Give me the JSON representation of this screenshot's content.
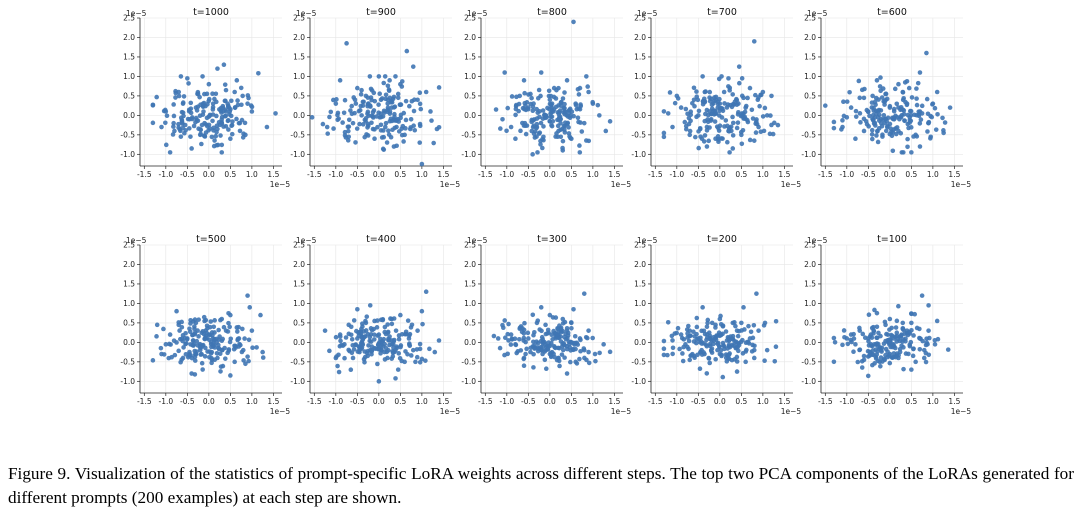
{
  "chart_data": {
    "type": "scatter",
    "description_axes": {
      "x_ticks": [
        "-1.5",
        "-1.0",
        "-0.5",
        "0.0",
        "0.5",
        "1.0",
        "1.5"
      ],
      "y_ticks": [
        "2.5",
        "2.0",
        "1.5",
        "1.0",
        "0.5",
        "0.0",
        "-0.5",
        "-1.0"
      ],
      "x_scale_label": "1e−5",
      "y_scale_label": "1e−5",
      "xlim": [
        -1.6,
        1.7
      ],
      "ylim": [
        -1.3,
        2.5
      ],
      "grid": true
    },
    "panels": [
      {
        "title": "t=1000",
        "points": [
          [
            -0.5,
            0.95
          ],
          [
            0.2,
            1.2
          ],
          [
            1.15,
            1.08
          ],
          [
            0.35,
            1.3
          ],
          [
            -0.9,
            -0.95
          ],
          [
            -0.4,
            -0.85
          ],
          [
            0.3,
            -0.95
          ],
          [
            1.55,
            0.05
          ],
          [
            1.35,
            -0.3
          ],
          [
            -1.0,
            0.1
          ],
          [
            -0.7,
            0.6
          ],
          [
            0.0,
            0.8
          ],
          [
            0.6,
            0.6
          ],
          [
            0.9,
            0.3
          ],
          [
            -0.2,
            -0.5
          ],
          [
            0.5,
            -0.6
          ],
          [
            -0.8,
            -0.4
          ],
          [
            0.1,
            0.3
          ],
          [
            -0.3,
            0.2
          ],
          [
            0.7,
            -0.2
          ],
          [
            1.0,
            0.1
          ],
          [
            -0.6,
            0.3
          ],
          [
            0.4,
            0.1
          ],
          [
            -0.1,
            -0.2
          ],
          [
            0.2,
            -0.35
          ],
          [
            -0.45,
            -0.1
          ],
          [
            0.85,
            -0.5
          ],
          [
            -1.1,
            -0.3
          ],
          [
            0.65,
            0.9
          ],
          [
            -0.25,
            0.55
          ]
        ]
      },
      {
        "title": "t=900",
        "points": [
          [
            -0.75,
            1.85
          ],
          [
            0.65,
            1.65
          ],
          [
            0.8,
            1.25
          ],
          [
            1.0,
            -1.25
          ],
          [
            -1.55,
            -0.05
          ],
          [
            1.35,
            -0.35
          ],
          [
            -0.9,
            0.9
          ],
          [
            0.0,
            1.0
          ],
          [
            0.5,
            0.8
          ],
          [
            -0.3,
            0.5
          ],
          [
            0.3,
            0.2
          ],
          [
            -0.6,
            -0.2
          ],
          [
            0.9,
            0.4
          ],
          [
            -0.1,
            -0.6
          ],
          [
            0.6,
            -0.5
          ],
          [
            1.2,
            0.1
          ],
          [
            -1.0,
            0.3
          ],
          [
            -0.4,
            0.0
          ],
          [
            0.15,
            -0.3
          ],
          [
            0.45,
            0.55
          ],
          [
            -0.7,
            -0.55
          ],
          [
            1.1,
            0.6
          ],
          [
            0.25,
            0.9
          ],
          [
            -0.2,
            0.25
          ],
          [
            0.75,
            -0.1
          ],
          [
            -1.2,
            -0.3
          ],
          [
            0.05,
            0.4
          ],
          [
            -0.5,
            0.7
          ],
          [
            0.35,
            -0.8
          ],
          [
            0.95,
            -0.7
          ]
        ]
      },
      {
        "title": "t=800",
        "points": [
          [
            0.55,
            2.4
          ],
          [
            -1.05,
            1.1
          ],
          [
            -0.6,
            0.9
          ],
          [
            -0.2,
            1.1
          ],
          [
            0.4,
            0.9
          ],
          [
            1.3,
            -0.4
          ],
          [
            -1.25,
            0.15
          ],
          [
            -0.4,
            -1.0
          ],
          [
            0.3,
            -0.9
          ],
          [
            0.0,
            0.4
          ],
          [
            0.6,
            0.3
          ],
          [
            -0.5,
            0.2
          ],
          [
            0.8,
            -0.2
          ],
          [
            -0.9,
            -0.3
          ],
          [
            0.2,
            -0.4
          ],
          [
            -0.1,
            0.0
          ],
          [
            1.0,
            0.3
          ],
          [
            0.5,
            -0.6
          ],
          [
            -0.7,
            0.5
          ],
          [
            0.9,
            0.6
          ],
          [
            -0.3,
            -0.3
          ],
          [
            0.7,
            0.7
          ],
          [
            -0.8,
            -0.6
          ],
          [
            0.1,
            0.7
          ],
          [
            1.15,
            0.0
          ],
          [
            -1.1,
            -0.1
          ],
          [
            0.35,
            0.1
          ],
          [
            -0.45,
            0.55
          ],
          [
            0.25,
            -0.2
          ],
          [
            -0.15,
            -0.55
          ]
        ]
      },
      {
        "title": "t=700",
        "points": [
          [
            0.8,
            1.9
          ],
          [
            0.45,
            1.25
          ],
          [
            -0.4,
            1.0
          ],
          [
            0.2,
            0.95
          ],
          [
            1.2,
            0.5
          ],
          [
            1.35,
            -0.25
          ],
          [
            -1.1,
            -0.3
          ],
          [
            -1.2,
            0.05
          ],
          [
            0.3,
            -0.85
          ],
          [
            -0.3,
            -0.8
          ],
          [
            0.0,
            0.3
          ],
          [
            0.6,
            0.2
          ],
          [
            -0.6,
            0.4
          ],
          [
            0.9,
            -0.3
          ],
          [
            -0.9,
            0.2
          ],
          [
            0.2,
            -0.4
          ],
          [
            -0.2,
            -0.1
          ],
          [
            1.0,
            0.6
          ],
          [
            0.5,
            -0.5
          ],
          [
            -0.7,
            -0.5
          ],
          [
            0.7,
            0.7
          ],
          [
            -0.5,
            0.0
          ],
          [
            0.1,
            0.6
          ],
          [
            1.1,
            0.0
          ],
          [
            -1.0,
            0.5
          ],
          [
            0.35,
            0.35
          ],
          [
            -0.35,
            0.6
          ],
          [
            0.8,
            -0.65
          ],
          [
            -0.1,
            -0.6
          ],
          [
            0.55,
            0.45
          ]
        ]
      },
      {
        "title": "t=600",
        "points": [
          [
            0.85,
            1.6
          ],
          [
            0.7,
            1.1
          ],
          [
            -0.3,
            0.9
          ],
          [
            0.2,
            0.8
          ],
          [
            1.1,
            0.6
          ],
          [
            1.25,
            -0.45
          ],
          [
            -1.5,
            0.25
          ],
          [
            -1.1,
            -0.3
          ],
          [
            -0.8,
            -0.6
          ],
          [
            0.5,
            -0.95
          ],
          [
            0.7,
            -0.8
          ],
          [
            0.0,
            0.2
          ],
          [
            0.4,
            0.3
          ],
          [
            -0.5,
            0.1
          ],
          [
            0.9,
            -0.2
          ],
          [
            -0.9,
            0.2
          ],
          [
            0.2,
            -0.4
          ],
          [
            -0.2,
            -0.2
          ],
          [
            1.0,
            0.3
          ],
          [
            0.6,
            -0.5
          ],
          [
            -0.6,
            -0.4
          ],
          [
            0.3,
            0.6
          ],
          [
            -0.4,
            0.5
          ],
          [
            0.1,
            -0.1
          ],
          [
            0.75,
            0.05
          ],
          [
            -1.0,
            -0.05
          ],
          [
            0.45,
            0.7
          ],
          [
            -0.1,
            0.55
          ],
          [
            0.95,
            -0.55
          ],
          [
            -0.7,
            0.45
          ]
        ]
      },
      {
        "title": "t=500",
        "points": [
          [
            0.9,
            1.2
          ],
          [
            0.95,
            0.9
          ],
          [
            1.2,
            0.7
          ],
          [
            -1.2,
            0.45
          ],
          [
            -0.75,
            0.8
          ],
          [
            -1.1,
            -0.3
          ],
          [
            0.5,
            -0.85
          ],
          [
            -0.4,
            -0.8
          ],
          [
            1.25,
            -0.25
          ],
          [
            0.0,
            0.2
          ],
          [
            0.4,
            0.3
          ],
          [
            -0.5,
            0.1
          ],
          [
            0.8,
            -0.2
          ],
          [
            -0.9,
            0.2
          ],
          [
            0.2,
            -0.4
          ],
          [
            -0.2,
            -0.2
          ],
          [
            1.0,
            0.3
          ],
          [
            0.6,
            -0.5
          ],
          [
            -0.6,
            -0.4
          ],
          [
            0.3,
            0.6
          ],
          [
            -0.3,
            0.5
          ],
          [
            0.1,
            -0.1
          ],
          [
            0.7,
            0.1
          ],
          [
            -1.0,
            -0.05
          ],
          [
            0.5,
            0.7
          ],
          [
            -0.1,
            0.55
          ],
          [
            0.85,
            -0.55
          ],
          [
            -0.7,
            0.45
          ],
          [
            0.25,
            0.15
          ],
          [
            -0.45,
            -0.25
          ]
        ]
      },
      {
        "title": "t=400",
        "points": [
          [
            1.1,
            1.3
          ],
          [
            1.0,
            0.8
          ],
          [
            -0.2,
            0.95
          ],
          [
            -0.5,
            0.85
          ],
          [
            -1.25,
            0.3
          ],
          [
            0.0,
            -1.0
          ],
          [
            0.45,
            -0.7
          ],
          [
            1.3,
            -0.25
          ],
          [
            -1.0,
            -0.4
          ],
          [
            0.0,
            0.2
          ],
          [
            0.4,
            0.3
          ],
          [
            -0.5,
            0.1
          ],
          [
            0.8,
            -0.2
          ],
          [
            -0.9,
            0.2
          ],
          [
            0.2,
            -0.4
          ],
          [
            -0.2,
            -0.2
          ],
          [
            0.9,
            0.3
          ],
          [
            0.6,
            -0.5
          ],
          [
            -0.6,
            -0.4
          ],
          [
            0.3,
            0.6
          ],
          [
            -0.3,
            0.5
          ],
          [
            0.1,
            -0.1
          ],
          [
            0.7,
            0.1
          ],
          [
            -0.8,
            -0.05
          ],
          [
            0.5,
            0.7
          ],
          [
            -0.1,
            0.55
          ],
          [
            0.85,
            -0.5
          ],
          [
            -0.7,
            0.45
          ],
          [
            0.25,
            0.15
          ],
          [
            -0.45,
            -0.25
          ]
        ]
      },
      {
        "title": "t=300",
        "points": [
          [
            0.8,
            1.25
          ],
          [
            0.55,
            0.85
          ],
          [
            -0.2,
            0.9
          ],
          [
            0.0,
            0.7
          ],
          [
            -1.2,
            0.1
          ],
          [
            1.25,
            -0.05
          ],
          [
            -0.6,
            -0.6
          ],
          [
            0.4,
            -0.8
          ],
          [
            0.0,
            -0.3
          ],
          [
            0.4,
            0.3
          ],
          [
            -0.5,
            0.1
          ],
          [
            0.8,
            -0.2
          ],
          [
            -0.9,
            0.2
          ],
          [
            0.2,
            -0.4
          ],
          [
            -0.2,
            -0.2
          ],
          [
            0.9,
            0.3
          ],
          [
            0.6,
            -0.5
          ],
          [
            -0.6,
            -0.4
          ],
          [
            0.3,
            0.6
          ],
          [
            -0.3,
            0.5
          ],
          [
            0.1,
            -0.1
          ],
          [
            0.7,
            0.1
          ],
          [
            -0.8,
            -0.05
          ],
          [
            0.5,
            0.5
          ],
          [
            -0.1,
            0.45
          ],
          [
            0.85,
            -0.45
          ],
          [
            -0.7,
            0.35
          ],
          [
            0.25,
            0.15
          ],
          [
            -0.45,
            -0.25
          ],
          [
            1.05,
            -0.3
          ]
        ]
      },
      {
        "title": "t=200",
        "points": [
          [
            0.85,
            1.25
          ],
          [
            0.55,
            0.9
          ],
          [
            -0.4,
            0.9
          ],
          [
            1.05,
            0.5
          ],
          [
            -1.1,
            0.05
          ],
          [
            1.1,
            -0.2
          ],
          [
            -0.7,
            -0.45
          ],
          [
            0.4,
            -0.75
          ],
          [
            0.0,
            -0.3
          ],
          [
            0.4,
            0.3
          ],
          [
            -0.5,
            0.1
          ],
          [
            0.8,
            -0.2
          ],
          [
            -0.9,
            0.2
          ],
          [
            0.2,
            -0.4
          ],
          [
            -0.2,
            -0.2
          ],
          [
            0.9,
            0.3
          ],
          [
            0.6,
            -0.5
          ],
          [
            -0.6,
            -0.35
          ],
          [
            0.3,
            0.5
          ],
          [
            -0.3,
            0.4
          ],
          [
            0.1,
            -0.1
          ],
          [
            0.7,
            0.1
          ],
          [
            -0.8,
            -0.05
          ],
          [
            0.5,
            0.5
          ],
          [
            -0.1,
            0.45
          ],
          [
            0.8,
            -0.4
          ],
          [
            -0.7,
            0.3
          ],
          [
            0.25,
            0.15
          ],
          [
            -0.45,
            -0.25
          ],
          [
            0.0,
            0.6
          ]
        ]
      },
      {
        "title": "t=100",
        "points": [
          [
            0.75,
            1.2
          ],
          [
            0.9,
            0.95
          ],
          [
            1.1,
            0.55
          ],
          [
            -0.3,
            0.75
          ],
          [
            -1.0,
            0.1
          ],
          [
            1.05,
            -0.05
          ],
          [
            -0.6,
            -0.45
          ],
          [
            0.5,
            -0.7
          ],
          [
            0.0,
            -0.3
          ],
          [
            0.4,
            0.3
          ],
          [
            -0.5,
            0.1
          ],
          [
            0.8,
            -0.2
          ],
          [
            -0.9,
            0.2
          ],
          [
            0.2,
            -0.4
          ],
          [
            -0.2,
            -0.2
          ],
          [
            0.9,
            0.3
          ],
          [
            0.6,
            -0.5
          ],
          [
            -0.6,
            -0.35
          ],
          [
            0.3,
            0.5
          ],
          [
            -0.3,
            0.4
          ],
          [
            0.1,
            -0.1
          ],
          [
            0.7,
            0.1
          ],
          [
            -0.8,
            -0.05
          ],
          [
            0.5,
            0.5
          ],
          [
            -0.1,
            0.45
          ],
          [
            0.8,
            -0.4
          ],
          [
            -0.7,
            0.3
          ],
          [
            0.25,
            0.15
          ],
          [
            -0.45,
            -0.25
          ],
          [
            0.0,
            0.6
          ]
        ]
      }
    ]
  },
  "caption": "Figure 9.  Visualization of the statistics of prompt-specific LoRA weights across different steps.  The top two PCA components of the LoRAs generated for different prompts (200 examples) at each step are shown.",
  "colors": {
    "point": "#3f76b4"
  }
}
